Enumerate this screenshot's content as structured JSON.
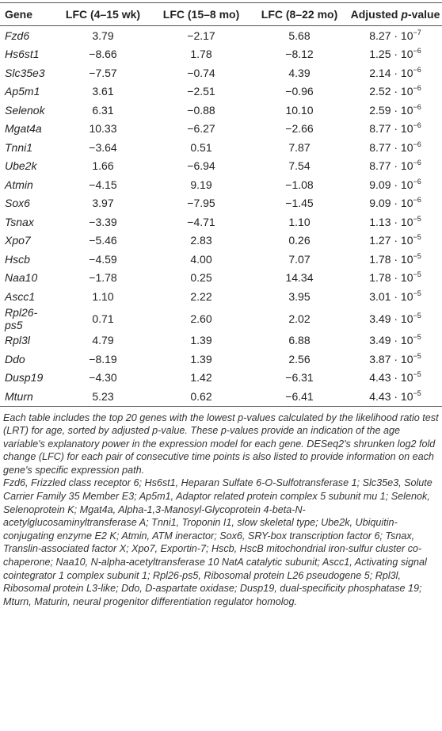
{
  "table": {
    "headers": [
      "Gene",
      "LFC (4–15 wk)",
      "LFC (15–8 mo)",
      "LFC (8–22 mo)",
      {
        "prefix": "Adjusted ",
        "italic": "p",
        "suffix": "-value"
      }
    ],
    "rows": [
      [
        "Fzd6",
        "3.79",
        "−2.17",
        "5.68",
        {
          "coefficient": "8.27 · 10",
          "exponent": "−7"
        }
      ],
      [
        "Hs6st1",
        "−8.66",
        "1.78",
        "−8.12",
        {
          "coefficient": "1.25 · 10",
          "exponent": "−6"
        }
      ],
      [
        "Slc35e3",
        "−7.57",
        "−0.74",
        "4.39",
        {
          "coefficient": "2.14 · 10",
          "exponent": "−6"
        }
      ],
      [
        "Ap5m1",
        "3.61",
        "−2.51",
        "−0.96",
        {
          "coefficient": "2.52 · 10",
          "exponent": "−6"
        }
      ],
      [
        "Selenok",
        "6.31",
        "−0.88",
        "10.10",
        {
          "coefficient": "2.59 · 10",
          "exponent": "−6"
        }
      ],
      [
        "Mgat4a",
        "10.33",
        "−6.27",
        "−2.66",
        {
          "coefficient": "8.77 · 10",
          "exponent": "−6"
        }
      ],
      [
        "Tnni1",
        "−3.64",
        "0.51",
        "7.87",
        {
          "coefficient": "8.77 · 10",
          "exponent": "−6"
        }
      ],
      [
        "Ube2k",
        "1.66",
        "−6.94",
        "7.54",
        {
          "coefficient": "8.77 · 10",
          "exponent": "−6"
        }
      ],
      [
        "Atmin",
        "−4.15",
        "9.19",
        "−1.08",
        {
          "coefficient": "9.09 · 10",
          "exponent": "−6"
        }
      ],
      [
        "Sox6",
        "3.97",
        "−7.95",
        "−1.45",
        {
          "coefficient": "9.09 · 10",
          "exponent": "−6"
        }
      ],
      [
        "Tsnax",
        "−3.39",
        "−4.71",
        "1.10",
        {
          "coefficient": "1.13 · 10",
          "exponent": "−5"
        }
      ],
      [
        "Xpo7",
        "−5.46",
        "2.83",
        "0.26",
        {
          "coefficient": "1.27 · 10",
          "exponent": "−5"
        }
      ],
      [
        "Hscb",
        "−4.59",
        "4.00",
        "7.07",
        {
          "coefficient": "1.78 · 10",
          "exponent": "−5"
        }
      ],
      [
        "Naa10",
        "−1.78",
        "0.25",
        "14.34",
        {
          "coefficient": "1.78 · 10",
          "exponent": "−5"
        }
      ],
      [
        "Ascc1",
        "1.10",
        "2.22",
        "3.95",
        {
          "coefficient": "3.01 · 10",
          "exponent": "−5"
        }
      ],
      [
        "Rpl26-ps5",
        "0.71",
        "2.60",
        "2.02",
        {
          "coefficient": "3.49 · 10",
          "exponent": "−5"
        }
      ],
      [
        "Rpl3l",
        "4.79",
        "1.39",
        "6.88",
        {
          "coefficient": "3.49 · 10",
          "exponent": "−5"
        }
      ],
      [
        "Ddo",
        "−8.19",
        "1.39",
        "2.56",
        {
          "coefficient": "3.87 · 10",
          "exponent": "−5"
        }
      ],
      [
        "Dusp19",
        "−4.30",
        "1.42",
        "−6.31",
        {
          "coefficient": "4.43 · 10",
          "exponent": "−5"
        }
      ],
      [
        "Mturn",
        "5.23",
        "0.62",
        "−6.41",
        {
          "coefficient": "4.43 · 10",
          "exponent": "−5"
        }
      ]
    ]
  },
  "footnotes": [
    "Each table includes the top 20 genes with the lowest p-values calculated by the likelihood ratio test (LRT) for age, sorted by adjusted p-value. These p-values provide an indication of the age variable's explanatory power in the expression model for each gene. DESeq2's shrunken log2 fold change (LFC) for each pair of consecutive time points is also listed to provide information on each gene's specific expression path.",
    "Fzd6, Frizzled class receptor 6; Hs6st1, Heparan Sulfate 6-O-Sulfotransferase 1; Slc35e3, Solute Carrier Family 35 Member E3; Ap5m1, Adaptor related protein complex 5 subunit mu 1; Selenok, Selenoprotein K; Mgat4a, Alpha-1,3-Manosyl-Glycoprotein 4-beta-N-acetylglucosaminyltransferase A; Tnni1, Troponin I1, slow skeletal type; Ube2k, Ubiquitin-conjugating enzyme E2 K; Atmin, ATM ineractor; Sox6, SRY-box transcription factor 6; Tsnax, Translin-associated factor X; Xpo7, Exportin-7; Hscb, HscB mitochondrial iron-sulfur cluster co-chaperone; Naa10, N-alpha-acetyltransferase 10 NatA catalytic subunit; Ascc1, Activating signal cointegrator 1 complex subunit 1; Rpl26-ps5, Ribosomal protein L26 pseudogene 5; Rpl3l, Ribosomal protein L3-like; Ddo, D-aspartate oxidase; Dusp19, dual-specificity phosphatase 19; Mturn, Maturin, neural progenitor differentiation regulator homolog."
  ]
}
